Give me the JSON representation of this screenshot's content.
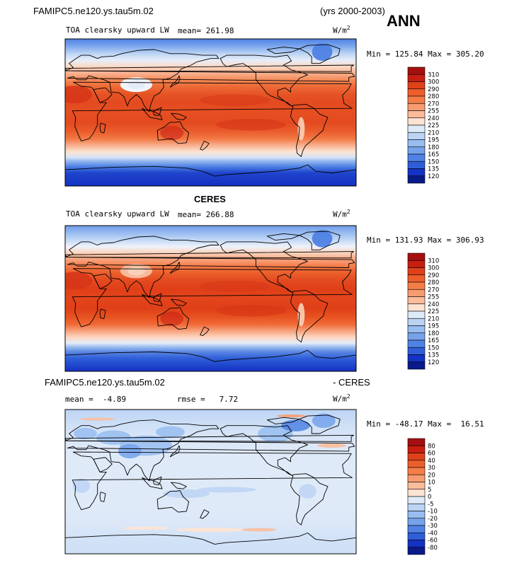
{
  "header": {
    "case_name": "FAMIPC5.ne120.ys.tau5m.02",
    "years": "(yrs 2000-2003)",
    "season": "ANN"
  },
  "panels": [
    {
      "title": "TOA clearsky upward LW",
      "mean_label": "mean=",
      "mean_value": "261.98",
      "units_base": "W/m",
      "units_exp": "2",
      "min_label": "Min =",
      "min_value": "125.84",
      "max_label": "Max =",
      "max_value": "305.20"
    },
    {
      "heading": "CERES",
      "title": "TOA clearsky upward LW",
      "mean_label": "mean=",
      "mean_value": "266.88",
      "units_base": "W/m",
      "units_exp": "2",
      "min_label": "Min =",
      "min_value": "131.93",
      "max_label": "Max =",
      "max_value": "306.93"
    },
    {
      "heading_left": "FAMIPC5.ne120.ys.tau5m.02",
      "heading_right": "- CERES",
      "mean_label": "mean =",
      "mean_value": "-4.89",
      "rmse_label": "rmse =",
      "rmse_value": "7.72",
      "units_base": "W/m",
      "units_exp": "2",
      "min_label": "Min =",
      "min_value": "-48.17",
      "max_label": "Max =",
      "max_value": "16.51"
    }
  ],
  "chart_data": [
    {
      "type": "heatmap",
      "title": "TOA clearsky upward LW",
      "colorbar_levels": [
        "310",
        "300",
        "290",
        "280",
        "270",
        "255",
        "240",
        "225",
        "210",
        "195",
        "180",
        "165",
        "150",
        "135",
        "120"
      ],
      "colorbar_colors": [
        "#a50f0f",
        "#c81e12",
        "#e0411a",
        "#ec5f2b",
        "#f47d48",
        "#f79c70",
        "#fbbc9c",
        "#fde3d2",
        "#dfeaf8",
        "#bcd4f4",
        "#98bdf0",
        "#76a2ec",
        "#4f82e4",
        "#2f5ed8",
        "#1432c4",
        "#0a1a8a"
      ],
      "mean": 261.98,
      "min": 125.84,
      "max": 305.2
    },
    {
      "type": "heatmap",
      "title": "TOA clearsky upward LW",
      "colorbar_levels": [
        "310",
        "300",
        "290",
        "280",
        "270",
        "255",
        "240",
        "225",
        "210",
        "195",
        "180",
        "165",
        "150",
        "135",
        "120"
      ],
      "colorbar_colors": [
        "#a50f0f",
        "#c81e12",
        "#e0411a",
        "#ec5f2b",
        "#f47d48",
        "#f79c70",
        "#fbbc9c",
        "#fde3d2",
        "#dfeaf8",
        "#bcd4f4",
        "#98bdf0",
        "#76a2ec",
        "#4f82e4",
        "#2f5ed8",
        "#1432c4",
        "#0a1a8a"
      ],
      "mean": 266.88,
      "min": 131.93,
      "max": 306.93
    },
    {
      "type": "heatmap",
      "title": "",
      "colorbar_levels": [
        "80",
        "60",
        "40",
        "30",
        "20",
        "10",
        "5",
        "0",
        "-5",
        "-10",
        "-20",
        "-30",
        "-40",
        "-60",
        "-80"
      ],
      "colorbar_colors": [
        "#a50f0f",
        "#c81e12",
        "#e0411a",
        "#ec5f2b",
        "#f47d48",
        "#f79c70",
        "#fbbc9c",
        "#fde3d2",
        "#dfeaf8",
        "#bcd4f4",
        "#98bdf0",
        "#76a2ec",
        "#4f82e4",
        "#2f5ed8",
        "#1432c4",
        "#0a1a8a"
      ],
      "mean": -4.89,
      "rmse": 7.72,
      "min": -48.17,
      "max": 16.51
    }
  ]
}
